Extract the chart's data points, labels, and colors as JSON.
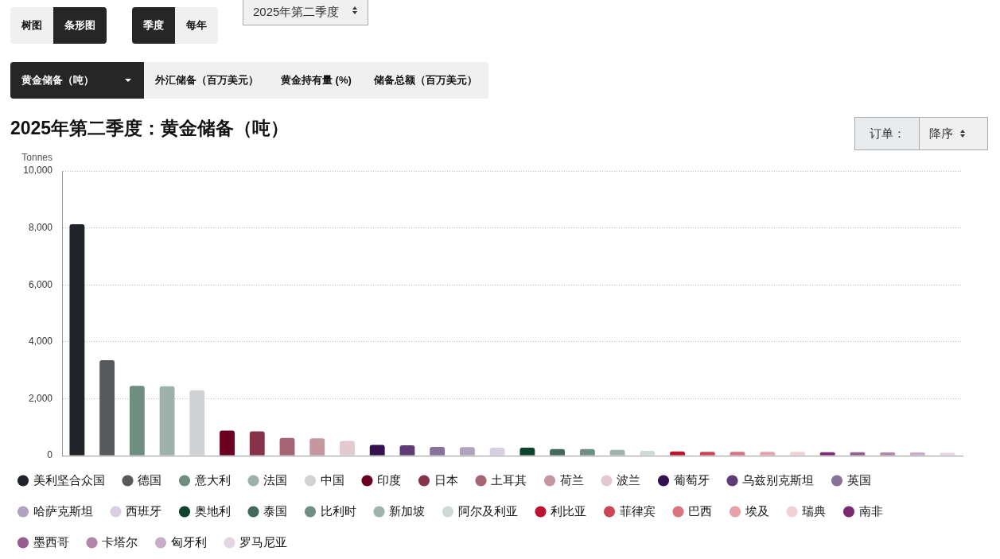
{
  "chart_data": {
    "type": "bar",
    "title": "2025年第二季度：黄金储备（吨）",
    "ylabel": "Tonnes",
    "annotations": [
      "树图",
      "条形图",
      "季度",
      "每年",
      "2025年第二季度",
      "黄金储备（吨）",
      "外汇储备（百万美元）",
      "黄金持有量 (%)",
      "储备总额（百万美元）",
      "订单：",
      "降序"
    ],
    "categories": [
      null,
      null,
      null,
      null,
      null,
      null,
      null,
      null,
      null,
      null,
      null,
      null,
      null,
      null,
      null,
      null,
      null,
      null,
      null,
      null,
      null,
      null,
      null,
      null,
      null,
      null,
      null,
      null,
      null,
      null
    ],
    "series": [
      {
        "name": "美利坚合众国",
        "color": "#212529",
        "values": [
          8130,
          null,
          null,
          null,
          null,
          null,
          null,
          null,
          null,
          null,
          null,
          null,
          null,
          null,
          null,
          null,
          null,
          null,
          null,
          null,
          null,
          null,
          null,
          null,
          null,
          null,
          null,
          null,
          null,
          null
        ]
      },
      {
        "name": "德国",
        "color": "#58595b",
        "values": [
          null,
          3350,
          null,
          null,
          null,
          null,
          null,
          null,
          null,
          null,
          null,
          null,
          null,
          null,
          null,
          null,
          null,
          null,
          null,
          null,
          null,
          null,
          null,
          null,
          null,
          null,
          null,
          null,
          null,
          null
        ]
      },
      {
        "name": "意大利",
        "color": "#6e8f80",
        "values": [
          null,
          null,
          2450,
          null,
          null,
          null,
          null,
          null,
          null,
          null,
          null,
          null,
          null,
          null,
          null,
          null,
          null,
          null,
          null,
          null,
          null,
          null,
          null,
          null,
          null,
          null,
          null,
          null,
          null,
          null
        ]
      },
      {
        "name": "法国",
        "color": "#9db3aa",
        "values": [
          null,
          null,
          null,
          2440,
          null,
          null,
          null,
          null,
          null,
          null,
          null,
          null,
          null,
          null,
          null,
          null,
          null,
          null,
          null,
          null,
          null,
          null,
          null,
          null,
          null,
          null,
          null,
          null,
          null,
          null
        ]
      },
      {
        "name": "中国",
        "color": "#d1d2d4",
        "values": [
          null,
          null,
          null,
          null,
          2300,
          null,
          null,
          null,
          null,
          null,
          null,
          null,
          null,
          null,
          null,
          null,
          null,
          null,
          null,
          null,
          null,
          null,
          null,
          null,
          null,
          null,
          null,
          null,
          null,
          null
        ]
      },
      {
        "name": "印度",
        "color": "#6b0020",
        "values": [
          null,
          null,
          null,
          null,
          null,
          880,
          null,
          null,
          null,
          null,
          null,
          null,
          null,
          null,
          null,
          null,
          null,
          null,
          null,
          null,
          null,
          null,
          null,
          null,
          null,
          null,
          null,
          null,
          null,
          null
        ]
      },
      {
        "name": "日本",
        "color": "#86334a",
        "values": [
          null,
          null,
          null,
          null,
          null,
          null,
          850,
          null,
          null,
          null,
          null,
          null,
          null,
          null,
          null,
          null,
          null,
          null,
          null,
          null,
          null,
          null,
          null,
          null,
          null,
          null,
          null,
          null,
          null,
          null
        ]
      },
      {
        "name": "土耳其",
        "color": "#a66371",
        "values": [
          null,
          null,
          null,
          null,
          null,
          null,
          null,
          620,
          null,
          null,
          null,
          null,
          null,
          null,
          null,
          null,
          null,
          null,
          null,
          null,
          null,
          null,
          null,
          null,
          null,
          null,
          null,
          null,
          null,
          null
        ]
      },
      {
        "name": "荷兰",
        "color": "#c497a1",
        "values": [
          null,
          null,
          null,
          null,
          null,
          null,
          null,
          null,
          610,
          null,
          null,
          null,
          null,
          null,
          null,
          null,
          null,
          null,
          null,
          null,
          null,
          null,
          null,
          null,
          null,
          null,
          null,
          null,
          null,
          null
        ]
      },
      {
        "name": "波兰",
        "color": "#e1cbd0",
        "values": [
          null,
          null,
          null,
          null,
          null,
          null,
          null,
          null,
          null,
          520,
          null,
          null,
          null,
          null,
          null,
          null,
          null,
          null,
          null,
          null,
          null,
          null,
          null,
          null,
          null,
          null,
          null,
          null,
          null,
          null
        ]
      },
      {
        "name": "葡萄牙",
        "color": "#35114f",
        "values": [
          null,
          null,
          null,
          null,
          null,
          null,
          null,
          null,
          null,
          null,
          380,
          null,
          null,
          null,
          null,
          null,
          null,
          null,
          null,
          null,
          null,
          null,
          null,
          null,
          null,
          null,
          null,
          null,
          null,
          null
        ]
      },
      {
        "name": "乌兹别克斯坦",
        "color": "#5e3d74",
        "values": [
          null,
          null,
          null,
          null,
          null,
          null,
          null,
          null,
          null,
          null,
          null,
          360,
          null,
          null,
          null,
          null,
          null,
          null,
          null,
          null,
          null,
          null,
          null,
          null,
          null,
          null,
          null,
          null,
          null,
          null
        ]
      },
      {
        "name": "英国",
        "color": "#87729c",
        "values": [
          null,
          null,
          null,
          null,
          null,
          null,
          null,
          null,
          null,
          null,
          null,
          null,
          310,
          null,
          null,
          null,
          null,
          null,
          null,
          null,
          null,
          null,
          null,
          null,
          null,
          null,
          null,
          null,
          null,
          null
        ]
      },
      {
        "name": "哈萨克斯坦",
        "color": "#b1a2bd",
        "values": [
          null,
          null,
          null,
          null,
          null,
          null,
          null,
          null,
          null,
          null,
          null,
          null,
          null,
          300,
          null,
          null,
          null,
          null,
          null,
          null,
          null,
          null,
          null,
          null,
          null,
          null,
          null,
          null,
          null,
          null
        ]
      },
      {
        "name": "西班牙",
        "color": "#d8d0e0",
        "values": [
          null,
          null,
          null,
          null,
          null,
          null,
          null,
          null,
          null,
          null,
          null,
          null,
          null,
          null,
          280,
          null,
          null,
          null,
          null,
          null,
          null,
          null,
          null,
          null,
          null,
          null,
          null,
          null,
          null,
          null
        ]
      },
      {
        "name": "奥地利",
        "color": "#10432e",
        "values": [
          null,
          null,
          null,
          null,
          null,
          null,
          null,
          null,
          null,
          null,
          null,
          null,
          null,
          null,
          null,
          280,
          null,
          null,
          null,
          null,
          null,
          null,
          null,
          null,
          null,
          null,
          null,
          null,
          null,
          null
        ]
      },
      {
        "name": "泰国",
        "color": "#42695a",
        "values": [
          null,
          null,
          null,
          null,
          null,
          null,
          null,
          null,
          null,
          null,
          null,
          null,
          null,
          null,
          null,
          null,
          230,
          null,
          null,
          null,
          null,
          null,
          null,
          null,
          null,
          null,
          null,
          null,
          null,
          null
        ]
      },
      {
        "name": "比利时",
        "color": "#6e8f81",
        "values": [
          null,
          null,
          null,
          null,
          null,
          null,
          null,
          null,
          null,
          null,
          null,
          null,
          null,
          null,
          null,
          null,
          null,
          230,
          null,
          null,
          null,
          null,
          null,
          null,
          null,
          null,
          null,
          null,
          null,
          null
        ]
      },
      {
        "name": "新加坡",
        "color": "#9db3ab",
        "values": [
          null,
          null,
          null,
          null,
          null,
          null,
          null,
          null,
          null,
          null,
          null,
          null,
          null,
          null,
          null,
          null,
          null,
          null,
          200,
          null,
          null,
          null,
          null,
          null,
          null,
          null,
          null,
          null,
          null,
          null
        ]
      },
      {
        "name": "阿尔及利亚",
        "color": "#cfdad5",
        "values": [
          null,
          null,
          null,
          null,
          null,
          null,
          null,
          null,
          null,
          null,
          null,
          null,
          null,
          null,
          null,
          null,
          null,
          null,
          null,
          170,
          null,
          null,
          null,
          null,
          null,
          null,
          null,
          null,
          null,
          null
        ]
      },
      {
        "name": "利比亚",
        "color": "#bc1331",
        "values": [
          null,
          null,
          null,
          null,
          null,
          null,
          null,
          null,
          null,
          null,
          null,
          null,
          null,
          null,
          null,
          null,
          null,
          null,
          null,
          null,
          150,
          null,
          null,
          null,
          null,
          null,
          null,
          null,
          null,
          null
        ]
      },
      {
        "name": "菲律宾",
        "color": "#cd4456",
        "values": [
          null,
          null,
          null,
          null,
          null,
          null,
          null,
          null,
          null,
          null,
          null,
          null,
          null,
          null,
          null,
          null,
          null,
          null,
          null,
          null,
          null,
          130,
          null,
          null,
          null,
          null,
          null,
          null,
          null,
          null
        ]
      },
      {
        "name": "巴西",
        "color": "#d97380",
        "values": [
          null,
          null,
          null,
          null,
          null,
          null,
          null,
          null,
          null,
          null,
          null,
          null,
          null,
          null,
          null,
          null,
          null,
          null,
          null,
          null,
          null,
          null,
          130,
          null,
          null,
          null,
          null,
          null,
          null,
          null
        ]
      },
      {
        "name": "埃及",
        "color": "#e6a1aa",
        "values": [
          null,
          null,
          null,
          null,
          null,
          null,
          null,
          null,
          null,
          null,
          null,
          null,
          null,
          null,
          null,
          null,
          null,
          null,
          null,
          null,
          null,
          null,
          null,
          130,
          null,
          null,
          null,
          null,
          null,
          null
        ]
      },
      {
        "name": "瑞典",
        "color": "#f2d0d5",
        "values": [
          null,
          null,
          null,
          null,
          null,
          null,
          null,
          null,
          null,
          null,
          null,
          null,
          null,
          null,
          null,
          null,
          null,
          null,
          null,
          null,
          null,
          null,
          null,
          null,
          130,
          null,
          null,
          null,
          null,
          null
        ]
      },
      {
        "name": "南非",
        "color": "#7b2a74",
        "values": [
          null,
          null,
          null,
          null,
          null,
          null,
          null,
          null,
          null,
          null,
          null,
          null,
          null,
          null,
          null,
          null,
          null,
          null,
          null,
          null,
          null,
          null,
          null,
          null,
          null,
          120,
          null,
          null,
          null,
          null
        ]
      },
      {
        "name": "墨西哥",
        "color": "#955d8f",
        "values": [
          null,
          null,
          null,
          null,
          null,
          null,
          null,
          null,
          null,
          null,
          null,
          null,
          null,
          null,
          null,
          null,
          null,
          null,
          null,
          null,
          null,
          null,
          null,
          null,
          null,
          null,
          120,
          null,
          null,
          null
        ]
      },
      {
        "name": "卡塔尔",
        "color": "#b087ab",
        "values": [
          null,
          null,
          null,
          null,
          null,
          null,
          null,
          null,
          null,
          null,
          null,
          null,
          null,
          null,
          null,
          null,
          null,
          null,
          null,
          null,
          null,
          null,
          null,
          null,
          null,
          null,
          null,
          110,
          null,
          null
        ]
      },
      {
        "name": "匈牙利",
        "color": "#caabc7",
        "values": [
          null,
          null,
          null,
          null,
          null,
          null,
          null,
          null,
          null,
          null,
          null,
          null,
          null,
          null,
          null,
          null,
          null,
          null,
          null,
          null,
          null,
          null,
          null,
          null,
          null,
          null,
          null,
          null,
          110,
          null
        ]
      },
      {
        "name": "罗马尼亚",
        "color": "#e4d5e3",
        "values": [
          null,
          null,
          null,
          null,
          null,
          null,
          null,
          null,
          null,
          null,
          null,
          null,
          null,
          null,
          null,
          null,
          null,
          null,
          null,
          null,
          null,
          null,
          null,
          null,
          null,
          null,
          null,
          null,
          null,
          100
        ]
      }
    ],
    "ylim": [
      0,
      10000
    ],
    "yticks": [
      0,
      {
        "value": 2000,
        "label": "2,000"
      },
      {
        "value": 4000,
        "label": "4,000"
      },
      {
        "value": 6000,
        "label": "6,000"
      },
      {
        "value": 8000,
        "label": "8,000"
      },
      {
        "value": 10000,
        "label": "10,000"
      }
    ],
    "grid": "y",
    "legend": "bottom",
    "tick_labels": "y"
  }
}
